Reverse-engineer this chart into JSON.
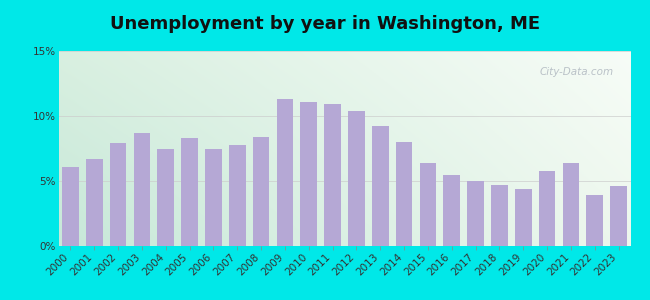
{
  "title": "Unemployment by year in Washington, ME",
  "years": [
    2000,
    2001,
    2002,
    2003,
    2004,
    2005,
    2006,
    2007,
    2008,
    2009,
    2010,
    2011,
    2012,
    2013,
    2014,
    2015,
    2016,
    2017,
    2018,
    2019,
    2020,
    2021,
    2022,
    2023
  ],
  "values": [
    6.1,
    6.7,
    7.9,
    8.7,
    7.5,
    8.3,
    7.5,
    7.8,
    8.4,
    11.3,
    11.1,
    10.9,
    10.4,
    9.2,
    8.0,
    6.4,
    5.5,
    5.0,
    4.7,
    4.4,
    5.8,
    6.4,
    3.9,
    4.6
  ],
  "bar_color": "#b5a8d5",
  "bar_edge_color": "#b5a8d5",
  "bg_outer": "#00e8e8",
  "grid_color": "#cccccc",
  "title_fontsize": 13,
  "tick_fontsize": 7.5,
  "ytick_labels": [
    "0%",
    "5%",
    "10%",
    "15%"
  ],
  "ytick_values": [
    0,
    5,
    10,
    15
  ],
  "ylim": [
    0,
    15
  ],
  "watermark_text": "City-Data.com",
  "grad_top_left": "#d4ede8",
  "grad_bottom_right": "#f8fcf8"
}
